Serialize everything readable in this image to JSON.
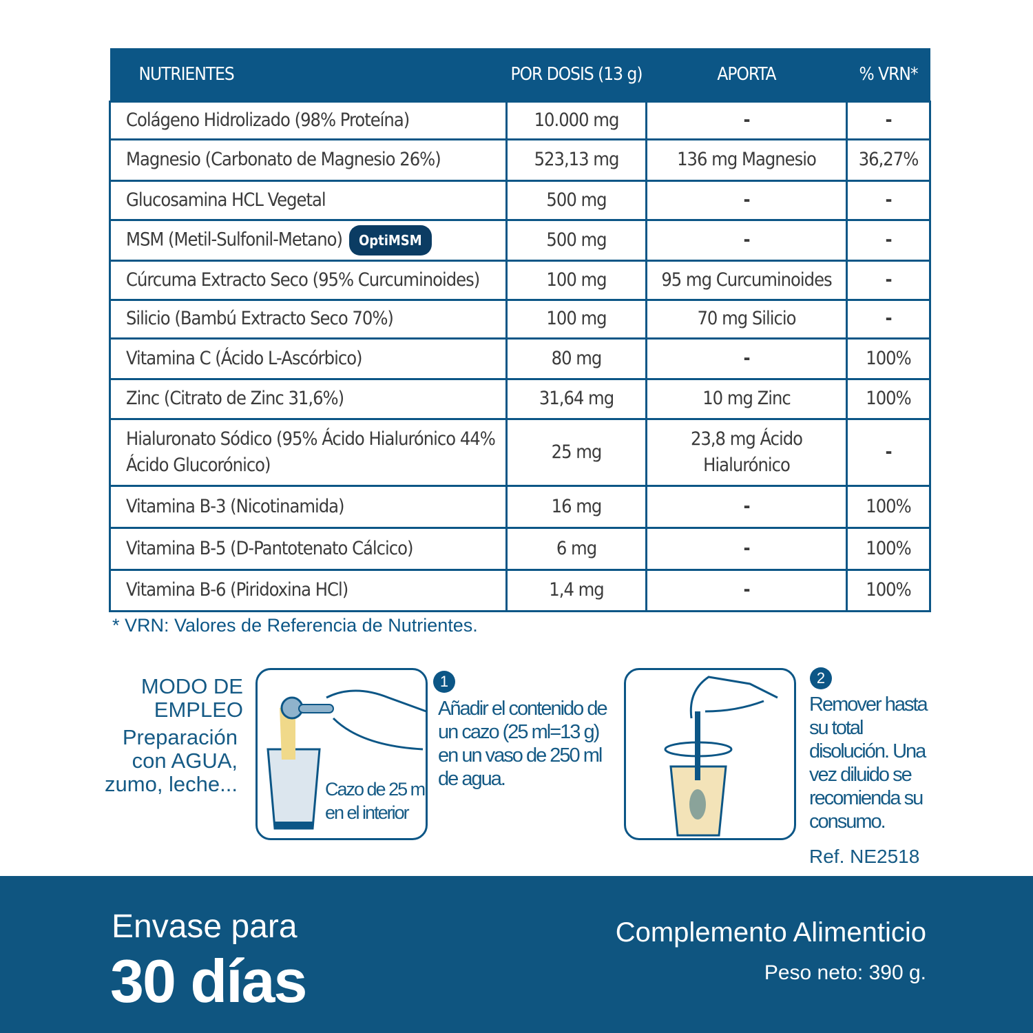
{
  "table": {
    "headers": [
      "NUTRIENTES",
      "POR DOSIS (13 g)",
      "APORTA",
      "% VRN*"
    ],
    "rows": [
      [
        "Colágeno Hidrolizado (98% Proteína)",
        "10.000 mg",
        "-",
        "-"
      ],
      [
        "Magnesio (Carbonato de Magnesio 26%)",
        "523,13 mg",
        "136 mg Magnesio",
        "36,27%"
      ],
      [
        "Glucosamina HCL Vegetal",
        "500 mg",
        "-",
        "-"
      ],
      [
        "MSM (Metil-Sulfonil-Metano)",
        "500 mg",
        "-",
        "-"
      ],
      [
        "Cúrcuma Extracto Seco (95% Curcuminoides)",
        "100 mg",
        "95 mg Curcuminoides",
        "-"
      ],
      [
        "Silicio (Bambú Extracto Seco 70%)",
        "100 mg",
        "70 mg Silicio",
        "-"
      ],
      [
        "Vitamina C (Ácido L-Ascórbico)",
        "80 mg",
        "-",
        "100%"
      ],
      [
        "Zinc (Citrato de Zinc 31,6%)",
        "31,64 mg",
        "10 mg Zinc",
        "100%"
      ],
      [
        "Hialuronato Sódico (95% Ácido Hialurónico 44% Ácido Glucorónico)",
        "25 mg",
        "23,8 mg Ácido Hialurónico",
        "-"
      ],
      [
        "Vitamina B-3 (Nicotinamida)",
        "16 mg",
        "-",
        "100%"
      ],
      [
        "Vitamina B-5 (D-Pantotenato Cálcico)",
        "6 mg",
        "-",
        "100%"
      ],
      [
        "Vitamina B-6 (Piridoxina HCl)",
        "1,4 mg",
        "-",
        "100%"
      ]
    ],
    "badge": "OptiMSM"
  },
  "footnote": "* VRN: Valores de Referencia de Nutrientes.",
  "modo": {
    "title": "MODO DE EMPLEO",
    "sub": "Preparación con AGUA, zumo, leche..."
  },
  "step1": {
    "num": "1",
    "text": "Añadir el contenido de un cazo (25 ml=13 g) en un vaso de 250 ml de agua.",
    "box_label": "Cazo de 25 ml en el interior"
  },
  "step2": {
    "num": "2",
    "text": "Remover hasta su total disolución. Una vez diluido se recomienda su consumo."
  },
  "ref": "Ref. NE2518",
  "band": {
    "envase": "Envase para",
    "dias": "30 días",
    "tipo": "Complemento Alimenticio",
    "peso": "Peso neto: 390 g."
  },
  "colors": {
    "brand": "#0c5686",
    "powder": "#f0d98a"
  }
}
